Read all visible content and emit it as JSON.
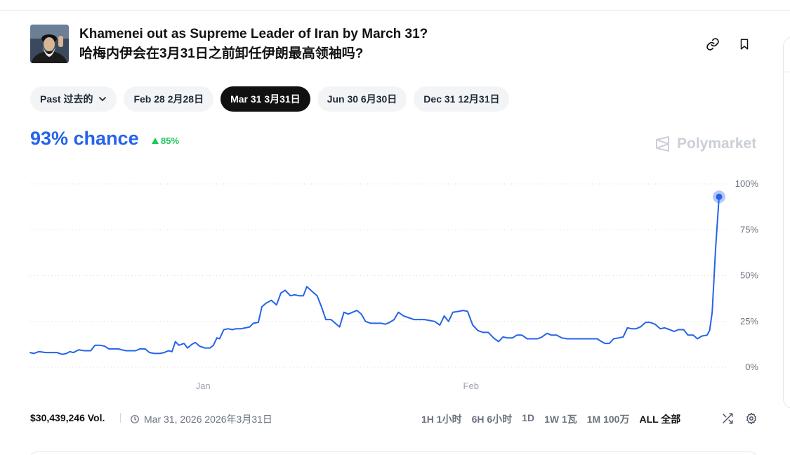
{
  "market": {
    "title_en": "Khamenei out as Supreme Leader of Iran by March 31?",
    "title_zh": "哈梅内伊会在3月31日之前卸任伊朗最高领袖吗?",
    "avatar_icon": "portrait-avatar"
  },
  "tabs": [
    {
      "label": "Past  过去的",
      "active": false,
      "has_dropdown": true
    },
    {
      "label": "Feb 28  2月28日",
      "active": false
    },
    {
      "label": "Mar 31  3月31日",
      "active": true
    },
    {
      "label": "Jun 30  6月30日",
      "active": false
    },
    {
      "label": "Dec 31  12月31日",
      "active": false
    }
  ],
  "chance": {
    "text": "93% chance",
    "value": 93,
    "delta": "85%",
    "delta_direction": "up"
  },
  "brand": {
    "name": "Polymarket"
  },
  "colors": {
    "accent": "#2563eb",
    "positive": "#22c55e",
    "muted": "#6b7280"
  },
  "chart_data": {
    "type": "line",
    "y_ticks": [
      "100%",
      "75%",
      "50%",
      "25%",
      "0%"
    ],
    "x_ticks": [
      {
        "label": "Jan",
        "day": 0
      },
      {
        "label": "Feb",
        "day": 31
      }
    ],
    "ylim": [
      0,
      100
    ],
    "grid": true,
    "series": [
      {
        "values": [
          [
            -20,
            8
          ],
          [
            -19.6,
            7.5
          ],
          [
            -19,
            8.5
          ],
          [
            -18.2,
            8
          ],
          [
            -17.5,
            8
          ],
          [
            -16.9,
            8
          ],
          [
            -16.3,
            7
          ],
          [
            -15.8,
            7.5
          ],
          [
            -15.4,
            8.5
          ],
          [
            -15,
            8
          ],
          [
            -14.4,
            9.5
          ],
          [
            -13.7,
            9
          ],
          [
            -13,
            9
          ],
          [
            -12.5,
            12
          ],
          [
            -11.9,
            12
          ],
          [
            -11.4,
            11.5
          ],
          [
            -10.9,
            10
          ],
          [
            -10.4,
            10
          ],
          [
            -9.8,
            10
          ],
          [
            -9.4,
            9.5
          ],
          [
            -8.9,
            9
          ],
          [
            -8.3,
            9
          ],
          [
            -7.8,
            9
          ],
          [
            -7.3,
            10
          ],
          [
            -6.7,
            10
          ],
          [
            -6.2,
            8
          ],
          [
            -5.6,
            7.5
          ],
          [
            -5,
            7.5
          ],
          [
            -4.5,
            8
          ],
          [
            -4,
            9
          ],
          [
            -3.6,
            8.5
          ],
          [
            -3.2,
            14
          ],
          [
            -2.8,
            12
          ],
          [
            -2.2,
            13
          ],
          [
            -1.8,
            10.5
          ],
          [
            -1.3,
            12.5
          ],
          [
            -0.9,
            13.5
          ],
          [
            -0.4,
            11.5
          ],
          [
            0.2,
            10.5
          ],
          [
            0.8,
            10.5
          ],
          [
            1.2,
            12
          ],
          [
            1.6,
            16
          ],
          [
            1.9,
            15.5
          ],
          [
            2.4,
            20.5
          ],
          [
            2.9,
            21
          ],
          [
            3.4,
            20.5
          ],
          [
            3.8,
            21
          ],
          [
            4.4,
            21
          ],
          [
            4.9,
            21.5
          ],
          [
            5.4,
            22
          ],
          [
            5.8,
            24
          ],
          [
            6.4,
            24.5
          ],
          [
            6.8,
            33
          ],
          [
            7.3,
            35
          ],
          [
            7.9,
            36.5
          ],
          [
            8.5,
            34
          ],
          [
            9,
            40.5
          ],
          [
            9.5,
            42
          ],
          [
            10.1,
            39
          ],
          [
            10.6,
            39.5
          ],
          [
            11.1,
            39
          ],
          [
            11.6,
            39
          ],
          [
            12,
            44
          ],
          [
            12.7,
            41
          ],
          [
            13.2,
            39
          ],
          [
            13.7,
            33
          ],
          [
            14.2,
            26
          ],
          [
            14.8,
            26
          ],
          [
            15.3,
            24
          ],
          [
            15.8,
            22
          ],
          [
            16.3,
            30
          ],
          [
            16.8,
            29
          ],
          [
            17.3,
            30
          ],
          [
            17.8,
            31
          ],
          [
            18.3,
            29
          ],
          [
            18.8,
            25
          ],
          [
            19.4,
            24
          ],
          [
            20,
            24
          ],
          [
            20.6,
            24
          ],
          [
            21.1,
            23.5
          ],
          [
            21.6,
            24.5
          ],
          [
            22.1,
            26
          ],
          [
            22.6,
            30
          ],
          [
            23.2,
            28
          ],
          [
            23.8,
            27
          ],
          [
            24.4,
            26
          ],
          [
            25,
            26
          ],
          [
            25.6,
            26
          ],
          [
            26.2,
            25.5
          ],
          [
            26.8,
            25
          ],
          [
            27.4,
            23
          ],
          [
            27.9,
            28
          ],
          [
            28.4,
            25
          ],
          [
            28.9,
            30
          ],
          [
            29.6,
            30.5
          ],
          [
            30.1,
            31
          ],
          [
            30.6,
            30.5
          ],
          [
            31.2,
            23
          ],
          [
            31.8,
            20
          ],
          [
            32.4,
            19
          ],
          [
            33,
            19
          ],
          [
            33.6,
            16
          ],
          [
            34.2,
            14
          ],
          [
            34.7,
            16.5
          ],
          [
            35.2,
            16
          ],
          [
            35.8,
            16
          ],
          [
            36.3,
            17.5
          ],
          [
            36.9,
            17.5
          ],
          [
            37.5,
            15.5
          ],
          [
            38.1,
            15.5
          ],
          [
            38.7,
            15.5
          ],
          [
            39.2,
            16.5
          ],
          [
            39.8,
            18.5
          ],
          [
            40.3,
            17.5
          ],
          [
            40.9,
            17.5
          ],
          [
            41.5,
            16
          ],
          [
            42.1,
            15.5
          ],
          [
            42.7,
            15.5
          ],
          [
            43.3,
            15.5
          ],
          [
            43.9,
            15.5
          ],
          [
            44.5,
            15.5
          ],
          [
            45.1,
            15.5
          ],
          [
            45.6,
            15.5
          ],
          [
            46.1,
            14
          ],
          [
            46.5,
            13
          ],
          [
            47,
            13
          ],
          [
            47.5,
            15.5
          ],
          [
            48.1,
            16
          ],
          [
            48.6,
            16.5
          ],
          [
            49.1,
            21.5
          ],
          [
            49.6,
            21
          ],
          [
            50.1,
            21
          ],
          [
            50.6,
            22
          ],
          [
            51.2,
            24.5
          ],
          [
            51.7,
            24.5
          ],
          [
            52.3,
            23.5
          ],
          [
            52.9,
            21
          ],
          [
            53.4,
            21.5
          ],
          [
            54,
            20.5
          ],
          [
            54.5,
            19.5
          ],
          [
            55,
            20.5
          ],
          [
            55.6,
            20.5
          ],
          [
            56.1,
            17.5
          ],
          [
            56.7,
            17.5
          ],
          [
            57.2,
            15.5
          ],
          [
            57.7,
            17
          ],
          [
            58.3,
            17.5
          ],
          [
            58.6,
            20
          ],
          [
            58.9,
            30
          ],
          [
            59.3,
            65
          ],
          [
            59.7,
            93
          ]
        ]
      }
    ],
    "current_point": {
      "day": 59.7,
      "value": 93
    }
  },
  "footer": {
    "volume": "$30,439,246 Vol.",
    "end_date": "Mar 31, 2026  2026年3月31日",
    "ranges": [
      {
        "label": "1H  1小时",
        "active": false
      },
      {
        "label": "6H  6小时",
        "active": false
      },
      {
        "label": "1D",
        "active": false
      },
      {
        "label": "1W  1瓦",
        "active": false
      },
      {
        "label": "1M  100万",
        "active": false
      },
      {
        "label": "ALL  全部",
        "active": true
      }
    ]
  }
}
